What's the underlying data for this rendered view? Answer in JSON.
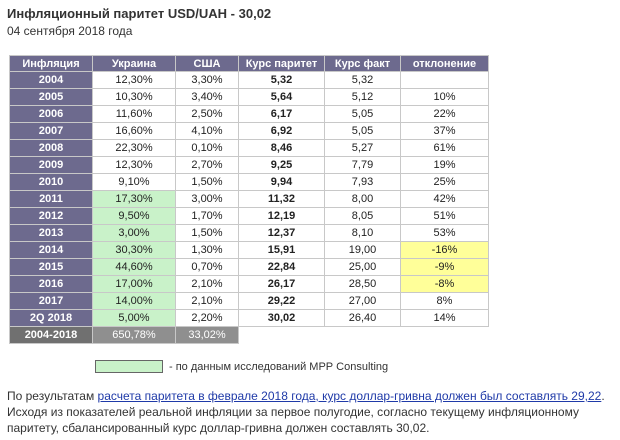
{
  "title": "Инфляционный паритет USD/UAH - 30,02",
  "date": "04 сентября 2018 года",
  "table": {
    "headers": [
      "Инфляция",
      "Украина",
      "США",
      "Курс паритет",
      "Курс факт",
      "отклонение"
    ],
    "rows": [
      {
        "year": "2004",
        "ua": "12,30%",
        "us": "3,30%",
        "parity": "5,32",
        "fact": "5,32",
        "dev": ""
      },
      {
        "year": "2005",
        "ua": "10,30%",
        "us": "3,40%",
        "parity": "5,64",
        "fact": "5,12",
        "dev": "10%"
      },
      {
        "year": "2006",
        "ua": "11,60%",
        "us": "2,50%",
        "parity": "6,17",
        "fact": "5,05",
        "dev": "22%"
      },
      {
        "year": "2007",
        "ua": "16,60%",
        "us": "4,10%",
        "parity": "6,92",
        "fact": "5,05",
        "dev": "37%"
      },
      {
        "year": "2008",
        "ua": "22,30%",
        "us": "0,10%",
        "parity": "8,46",
        "fact": "5,27",
        "dev": "61%"
      },
      {
        "year": "2009",
        "ua": "12,30%",
        "us": "2,70%",
        "parity": "9,25",
        "fact": "7,79",
        "dev": "19%"
      },
      {
        "year": "2010",
        "ua": "9,10%",
        "us": "1,50%",
        "parity": "9,94",
        "fact": "7,93",
        "dev": "25%"
      },
      {
        "year": "2011",
        "ua": "17,30%",
        "us": "3,00%",
        "parity": "11,32",
        "fact": "8,00",
        "dev": "42%"
      },
      {
        "year": "2012",
        "ua": "9,50%",
        "us": "1,70%",
        "parity": "12,19",
        "fact": "8,05",
        "dev": "51%"
      },
      {
        "year": "2013",
        "ua": "3,00%",
        "us": "1,50%",
        "parity": "12,37",
        "fact": "8,10",
        "dev": "53%"
      },
      {
        "year": "2014",
        "ua": "30,30%",
        "us": "1,30%",
        "parity": "15,91",
        "fact": "19,00",
        "dev": "-16%"
      },
      {
        "year": "2015",
        "ua": "44,60%",
        "us": "0,70%",
        "parity": "22,84",
        "fact": "25,00",
        "dev": "-9%"
      },
      {
        "year": "2016",
        "ua": "17,00%",
        "us": "2,10%",
        "parity": "26,17",
        "fact": "28,50",
        "dev": "-8%"
      },
      {
        "year": "2017",
        "ua": "14,00%",
        "us": "2,10%",
        "parity": "29,22",
        "fact": "27,00",
        "dev": "8%"
      },
      {
        "year": "2Q 2018",
        "ua": "5,00%",
        "us": "2,20%",
        "parity": "30,02",
        "fact": "26,40",
        "dev": "14%"
      }
    ],
    "total": {
      "year": "2004-2018",
      "ua": "650,78%",
      "us": "33,02%"
    }
  },
  "colors": {
    "header_bg": "#6d6a8e",
    "green": "#c9f2c9",
    "yellow": "#ffff99",
    "total_bg": "#8f8f8f",
    "link": "#1f3aa8"
  },
  "legend": "- по данным исследований МРР Consulting",
  "note": {
    "part1": "По результатам ",
    "link": "расчета паритета в феврале 2018 года, курс доллар-гривна должен был составлять 29,22",
    "part2": ". Исходя из показателей реальной инфляции за первое полугодие, согласно текущему инфляционному паритету, сбалансированный курс доллар-гривна должен составлять 30,02."
  }
}
